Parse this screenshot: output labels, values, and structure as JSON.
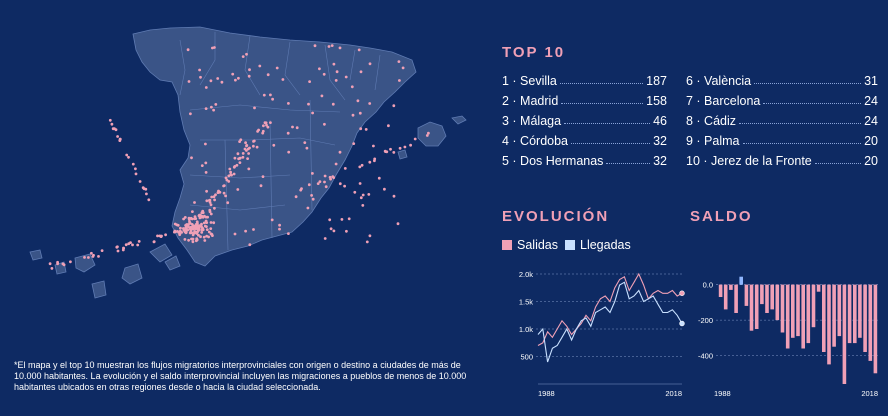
{
  "top10": {
    "title": "TOP 10",
    "items": [
      {
        "rank": "1",
        "name": "Sevilla",
        "value": "187"
      },
      {
        "rank": "2",
        "name": "Madrid",
        "value": "158"
      },
      {
        "rank": "3",
        "name": "Málaga",
        "value": "46"
      },
      {
        "rank": "4",
        "name": "Córdoba",
        "value": "32"
      },
      {
        "rank": "5",
        "name": "Dos Hermanas",
        "value": "32"
      },
      {
        "rank": "6",
        "name": "València",
        "value": "31"
      },
      {
        "rank": "7",
        "name": "Barcelona",
        "value": "24"
      },
      {
        "rank": "8",
        "name": "Cádiz",
        "value": "24"
      },
      {
        "rank": "9",
        "name": "Palma",
        "value": "20"
      },
      {
        "rank": "10",
        "name": "Jerez de la Fronte",
        "value": "20"
      }
    ]
  },
  "evolucion": {
    "title": "EVOLUCIÓN",
    "legend_salidas": "Salidas",
    "legend_llegadas": "Llegadas"
  },
  "saldo": {
    "title": "SALDO"
  },
  "footnote": "*El mapa y el top 10 muestran los flujos migratorios interprovinciales con origen o destino a ciudades de más de 10.000 habitantes. La evolución y el saldo interprovincial incluyen las migraciones a pueblos de menos de 10.000 habitantes ubicados en otras regiones desde o hacia la ciudad seleccionada.",
  "colors": {
    "background": "#0e2a63",
    "land": "#3a5487",
    "border": "#5f7bb3",
    "salidas": "#f0a0b6",
    "llegadas": "#c8e0ff",
    "accent": "#f0a0b6"
  },
  "chart_data": [
    {
      "type": "line",
      "title": "EVOLUCIÓN",
      "xlabel": "",
      "ylabel": "",
      "x": [
        1988,
        1989,
        1990,
        1991,
        1992,
        1993,
        1994,
        1995,
        1996,
        1997,
        1998,
        1999,
        2000,
        2001,
        2002,
        2003,
        2004,
        2005,
        2006,
        2007,
        2008,
        2009,
        2010,
        2011,
        2012,
        2013,
        2014,
        2015,
        2016,
        2017,
        2018
      ],
      "series": [
        {
          "name": "Salidas",
          "values": [
            700,
            750,
            950,
            850,
            1000,
            1150,
            1050,
            900,
            1000,
            1100,
            1250,
            1150,
            1400,
            1550,
            1600,
            1500,
            1750,
            1900,
            1950,
            1700,
            1850,
            2000,
            1800,
            1550,
            1650,
            1700,
            1650,
            1650,
            1700,
            1600,
            1650
          ]
        },
        {
          "name": "Llegadas",
          "values": [
            900,
            1000,
            400,
            650,
            700,
            850,
            1000,
            800,
            1000,
            1150,
            1200,
            1050,
            1300,
            1350,
            1400,
            1300,
            1500,
            1800,
            1850,
            1550,
            1600,
            1700,
            1500,
            1550,
            1600,
            1450,
            1300,
            1300,
            1350,
            1250,
            1100
          ]
        }
      ],
      "ylim": [
        0,
        2000
      ],
      "yticks": [
        "2.0k",
        "1.5k",
        "1.0k",
        "500"
      ],
      "xticks": [
        "1988",
        "2018"
      ],
      "grid": true,
      "legend": "top-left"
    },
    {
      "type": "bar",
      "title": "SALDO",
      "x": [
        1988,
        1989,
        1990,
        1991,
        1992,
        1993,
        1994,
        1995,
        1996,
        1997,
        1998,
        1999,
        2000,
        2001,
        2002,
        2003,
        2004,
        2005,
        2006,
        2007,
        2008,
        2009,
        2010,
        2011,
        2012,
        2013,
        2014,
        2015,
        2016,
        2017,
        2018
      ],
      "values": [
        -70,
        -140,
        -30,
        -160,
        45,
        -120,
        -260,
        -250,
        -110,
        -160,
        -140,
        -200,
        -270,
        -360,
        -300,
        -290,
        -360,
        -330,
        -240,
        -40,
        -380,
        -450,
        -350,
        -290,
        -560,
        -330,
        -330,
        -300,
        -380,
        -430,
        -500
      ],
      "ylim": [
        -560,
        60
      ],
      "yticks": [
        "0.0",
        "-200",
        "-400"
      ],
      "xticks": [
        "1988",
        "2018"
      ],
      "grid": true
    }
  ]
}
